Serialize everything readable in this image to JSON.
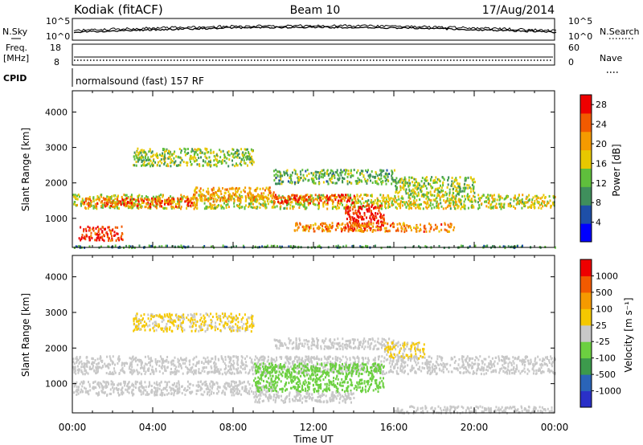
{
  "header": {
    "site": "Kodiak (fitACF)",
    "beam": "Beam 10",
    "date": "17/Aug/2014"
  },
  "param_panels": {
    "nsky_label": "N.Sky",
    "nsearch_label": "N.Search",
    "noise_ticks_left": [
      "10^5",
      "10^0"
    ],
    "noise_ticks_right": [
      "10^5",
      "10^0"
    ],
    "freq_label": [
      "Freq.",
      "[MHz]"
    ],
    "freq_ticks": [
      "18",
      "8"
    ],
    "nave_label": "Nave",
    "nave_ticks": [
      "60",
      "0"
    ],
    "cpid_label": "CPID",
    "cpid_value": "normalsound (fast) 157 RF"
  },
  "chart_data": [
    {
      "type": "heatmap",
      "title": "",
      "xlabel": "",
      "ylabel": "Slant Range [km]",
      "x_ticks": [
        "00:00",
        "04:00",
        "08:00",
        "12:00",
        "16:00",
        "20:00",
        "00:00"
      ],
      "xlim_hours": [
        0,
        24
      ],
      "y_ticks": [
        "1000",
        "2000",
        "3000",
        "4000"
      ],
      "ylim": [
        180,
        4600
      ],
      "colorbar": {
        "label": "Power [dB]",
        "ticks": [
          "4",
          "8",
          "12",
          "16",
          "20",
          "24",
          "28"
        ],
        "range": [
          0,
          30
        ],
        "colors": [
          "#0000ff",
          "#1e4fa8",
          "#3f8f5c",
          "#5fbf3c",
          "#e8c800",
          "#f59a00",
          "#f25a00",
          "#ee0000"
        ]
      },
      "bands": [
        {
          "t0": 0.0,
          "t1": 24.0,
          "r0": 1300,
          "r1": 1700,
          "power": 16
        },
        {
          "t0": 0.5,
          "t1": 6.0,
          "r0": 1350,
          "r1": 1600,
          "power": 24
        },
        {
          "t0": 6.0,
          "t1": 10.0,
          "r0": 1500,
          "r1": 1900,
          "power": 20
        },
        {
          "t0": 10.0,
          "t1": 14.0,
          "r0": 1450,
          "r1": 1700,
          "power": 25
        },
        {
          "t0": 3.0,
          "t1": 9.0,
          "r0": 2500,
          "r1": 3000,
          "power": 14
        },
        {
          "t0": 13.5,
          "t1": 15.5,
          "r0": 700,
          "r1": 1400,
          "power": 28
        },
        {
          "t0": 11.0,
          "t1": 19.0,
          "r0": 650,
          "r1": 900,
          "power": 22
        },
        {
          "t0": 0.3,
          "t1": 2.5,
          "r0": 400,
          "r1": 800,
          "power": 26
        },
        {
          "t0": 10.0,
          "t1": 16.0,
          "r0": 2000,
          "r1": 2400,
          "power": 12
        },
        {
          "t0": 16.0,
          "t1": 20.0,
          "r0": 1700,
          "r1": 2200,
          "power": 14
        },
        {
          "t0": 0.0,
          "t1": 24.0,
          "r0": 200,
          "r1": 260,
          "power": 10
        }
      ]
    },
    {
      "type": "heatmap",
      "title": "",
      "xlabel": "Time UT",
      "ylabel": "Slant Range [km]",
      "x_ticks": [
        "00:00",
        "04:00",
        "08:00",
        "12:00",
        "16:00",
        "20:00",
        "00:00"
      ],
      "xlim_hours": [
        0,
        24
      ],
      "y_ticks": [
        "1000",
        "2000",
        "3000",
        "4000"
      ],
      "ylim": [
        180,
        4600
      ],
      "colorbar": {
        "label": "Velocity [m s⁻¹]",
        "ticks": [
          "1000",
          "500",
          "100",
          "25",
          "-25",
          "-100",
          "-500",
          "-1000"
        ],
        "range": [
          -1200,
          1200
        ],
        "colors": [
          "#2a30c8",
          "#2a64b8",
          "#3c9a4c",
          "#6cd040",
          "#c8c8c8",
          "#f5c800",
          "#f59a00",
          "#f25a00",
          "#ee0000"
        ]
      },
      "bands": [
        {
          "t0": 0.0,
          "t1": 24.0,
          "r0": 1300,
          "r1": 1800,
          "velocity": 0
        },
        {
          "t0": 0.0,
          "t1": 10.0,
          "r0": 700,
          "r1": 1100,
          "velocity": 0
        },
        {
          "t0": 9.0,
          "t1": 15.5,
          "r0": 800,
          "r1": 1600,
          "velocity": -300
        },
        {
          "t0": 9.0,
          "t1": 14.0,
          "r0": 500,
          "r1": 800,
          "velocity": -60
        },
        {
          "t0": 3.0,
          "t1": 9.0,
          "r0": 2500,
          "r1": 3000,
          "velocity": 150
        },
        {
          "t0": 10.0,
          "t1": 16.0,
          "r0": 2000,
          "r1": 2300,
          "velocity": 0
        },
        {
          "t0": 16.0,
          "t1": 24.0,
          "r0": 200,
          "r1": 400,
          "velocity": -60
        },
        {
          "t0": 15.5,
          "t1": 17.5,
          "r0": 1700,
          "r1": 2200,
          "velocity": 150
        }
      ]
    }
  ]
}
